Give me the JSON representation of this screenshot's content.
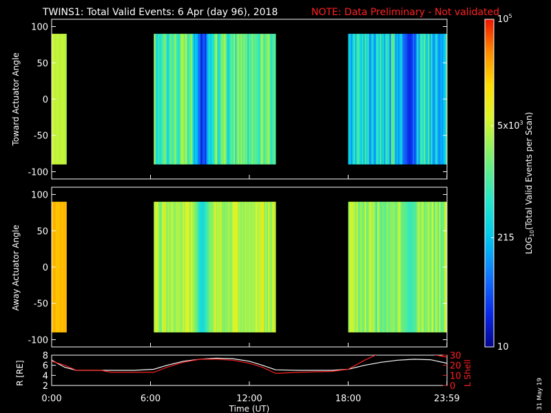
{
  "title": "TWINS1: Total Valid Events:  6 Apr (day  96), 2018",
  "note": "NOTE: Data Preliminary - Not validated",
  "side_date": "31 May 19",
  "colors": {
    "background": "#000000",
    "axes": "#ffffff",
    "note": "#ff2020",
    "r_line": "#ffffff",
    "lshell_line": "#ff2020"
  },
  "chart_data": [
    {
      "type": "heatmap",
      "name": "toward",
      "ylabel": "Toward Actuator Angle",
      "xlim": [
        0,
        24
      ],
      "ylim": [
        -110,
        110
      ],
      "y_ticks": [
        "100",
        "50",
        "0",
        "-50",
        "-100"
      ],
      "y_tick_values": [
        100,
        50,
        0,
        -50,
        -100
      ],
      "data_y_range": [
        -90,
        90
      ],
      "segments": [
        {
          "t_start": 0.0,
          "t_end": 0.9,
          "log10_level": [
            3.6,
            3.75
          ]
        },
        {
          "t_start": 6.2,
          "t_end": 13.6,
          "log10_level": [
            2.6,
            3.7
          ],
          "dip_center": 9.1,
          "dip_level": 1.6
        },
        {
          "t_start": 18.0,
          "t_end": 23.99,
          "log10_level": [
            2.0,
            3.3
          ],
          "dip_center": 21.7,
          "dip_level": 1.4
        }
      ]
    },
    {
      "type": "heatmap",
      "name": "away",
      "ylabel": "Away Actuator Angle",
      "xlim": [
        0,
        24
      ],
      "ylim": [
        -110,
        110
      ],
      "y_ticks": [
        "100",
        "50",
        "0",
        "-50",
        "-100"
      ],
      "y_tick_values": [
        100,
        50,
        0,
        -50,
        -100
      ],
      "data_y_range": [
        -90,
        90
      ],
      "segments": [
        {
          "t_start": 0.0,
          "t_end": 0.9,
          "log10_level": [
            4.3,
            4.45
          ]
        },
        {
          "t_start": 6.2,
          "t_end": 13.6,
          "log10_level": [
            3.3,
            4.0
          ],
          "dip_center": 9.1,
          "dip_level": 2.6
        },
        {
          "t_start": 18.0,
          "t_end": 23.99,
          "log10_level": [
            3.1,
            3.9
          ],
          "dip_center": 21.7,
          "dip_level": 2.9
        }
      ]
    },
    {
      "type": "line",
      "name": "ephemeris",
      "xlabel": "Time (UT)",
      "xlim": [
        0,
        24
      ],
      "x_ticks": [
        "0:00",
        "6:00",
        "12:00",
        "18:00",
        "23:59"
      ],
      "x_tick_values": [
        0,
        6,
        12,
        18,
        23.99
      ],
      "left_axis": {
        "label": "R [RE]",
        "ylim": [
          2,
          8
        ],
        "ticks": [
          "2",
          "4",
          "6",
          "8"
        ],
        "tick_values": [
          2,
          4,
          6,
          8
        ]
      },
      "right_axis": {
        "label": "L Shell",
        "ylim": [
          0,
          30
        ],
        "ticks": [
          "0",
          "10",
          "20",
          "30"
        ],
        "tick_values": [
          0,
          10,
          20,
          30
        ]
      },
      "series": [
        {
          "axis": "left",
          "x": [
            0,
            0.8,
            1.5,
            3,
            5,
            6.2,
            7,
            8,
            9,
            10,
            11,
            12,
            12.8,
            13.6,
            15,
            17,
            18,
            19,
            20,
            21,
            22,
            23,
            23.99
          ],
          "y": [
            7.0,
            5.6,
            5.0,
            5.0,
            5.0,
            5.2,
            6.0,
            6.8,
            7.2,
            7.4,
            7.3,
            6.8,
            6.0,
            5.1,
            5.0,
            5.0,
            5.2,
            6.0,
            6.6,
            7.0,
            7.2,
            7.1,
            6.4
          ]
        },
        {
          "axis": "right",
          "x": [
            0,
            0.8,
            1.5,
            3,
            3.6,
            5,
            6.2,
            7,
            8,
            9,
            10,
            11,
            12,
            12.8,
            13.6,
            15,
            17,
            18,
            19,
            19.8,
            20.2
          ],
          "y": [
            24,
            20,
            15,
            15,
            13,
            13,
            13,
            18,
            23,
            26,
            26,
            25,
            22,
            18,
            12,
            13,
            14,
            16,
            25,
            31,
            33
          ],
          "y_tail": {
            "x": [
              23.0,
              23.99
            ],
            "y": [
              31,
              28
            ]
          }
        }
      ]
    }
  ],
  "colorbar": {
    "label": "LOG10(Total Valid Events per Scan)",
    "label_main": "LOG",
    "label_sub": "10",
    "label_rest": "(Total Valid Events per Scan)",
    "log_range": [
      1,
      5
    ],
    "ticks": [
      {
        "label": "10",
        "log10": 1
      },
      {
        "label": "215",
        "log10": 2.333
      },
      {
        "label": "5x10",
        "sup": "3",
        "log10": 3.699
      },
      {
        "label": "10",
        "sup": "5",
        "log10": 5
      }
    ]
  }
}
